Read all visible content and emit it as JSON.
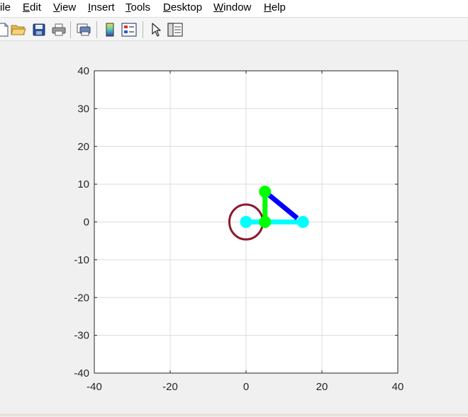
{
  "menubar": {
    "items": [
      {
        "pre": "",
        "mn": "",
        "post": "ile",
        "x": 0
      },
      {
        "pre": "",
        "mn": "E",
        "post": "dit",
        "x": 32
      },
      {
        "pre": "",
        "mn": "V",
        "post": "iew",
        "x": 75
      },
      {
        "pre": "",
        "mn": "I",
        "post": "nsert",
        "x": 124
      },
      {
        "pre": "",
        "mn": "T",
        "post": "ools",
        "x": 177
      },
      {
        "pre": "",
        "mn": "D",
        "post": "esktop",
        "x": 230
      },
      {
        "pre": "",
        "mn": "W",
        "post": "indow",
        "x": 301
      },
      {
        "pre": "",
        "mn": "H",
        "post": "elp",
        "x": 372
      }
    ]
  },
  "toolbar": {
    "icons": [
      "new-file-icon",
      "open-folder-icon",
      "save-icon",
      "print-icon",
      "print-preview-icon",
      "colorbar-icon",
      "legend-icon",
      "select-pointer-icon",
      "property-editor-icon"
    ]
  },
  "chart_data": {
    "type": "line",
    "xlim": [
      -40,
      40
    ],
    "ylim": [
      -40,
      40
    ],
    "xticks": [
      -40,
      -20,
      0,
      20,
      40
    ],
    "yticks": [
      -40,
      -30,
      -20,
      -10,
      0,
      10,
      20,
      30,
      40
    ],
    "xtick_labels": [
      "-40",
      "-20",
      "0",
      "20",
      "40"
    ],
    "ytick_labels": [
      "-40",
      "-30",
      "-20",
      "-10",
      "0",
      "10",
      "20",
      "30",
      "40"
    ],
    "grid": true,
    "series": [
      {
        "x": [
          0,
          15
        ],
        "y": [
          0,
          0
        ],
        "color": "#00ffff",
        "marker": "circle"
      },
      {
        "x": [
          5,
          5
        ],
        "y": [
          0,
          8
        ],
        "color": "#00ff00",
        "marker": "circle"
      },
      {
        "x": [
          5,
          13.5
        ],
        "y": [
          8,
          1
        ],
        "color": "#0000ff",
        "marker": "none"
      }
    ],
    "ellipse": {
      "cx": 0,
      "cy": 0,
      "rx": 4.4,
      "ry": 4.4,
      "color": "#8b1a2e"
    }
  }
}
